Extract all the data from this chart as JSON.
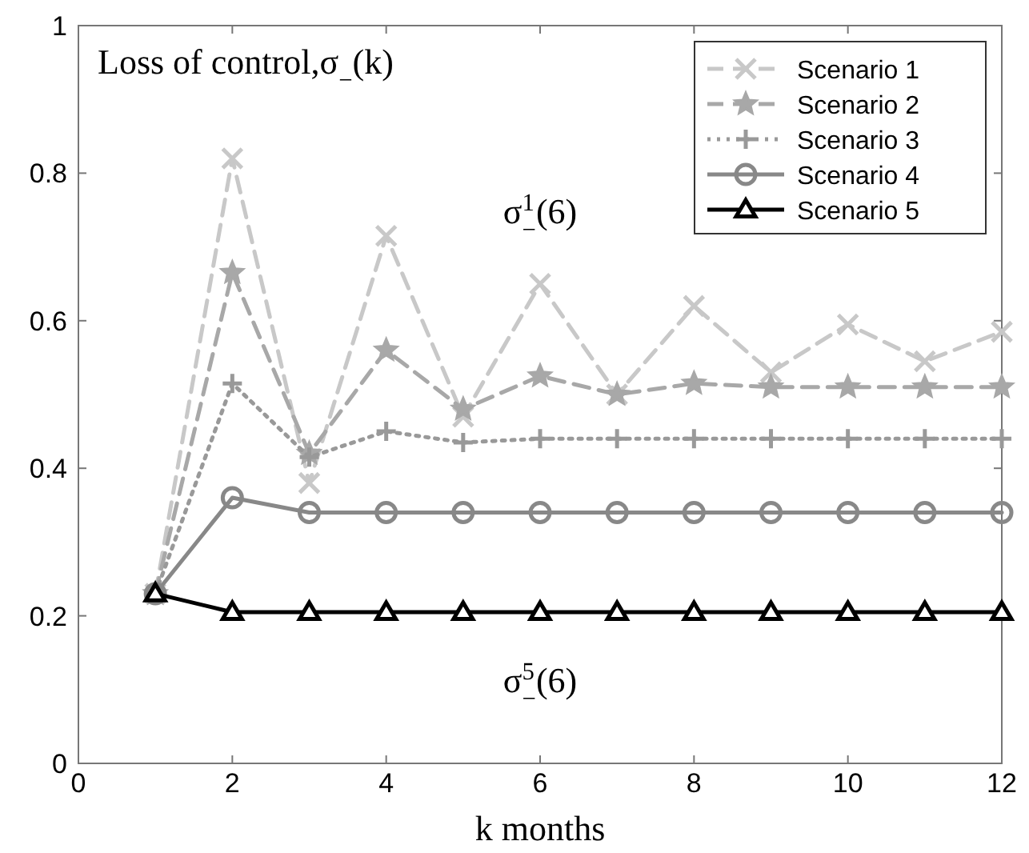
{
  "chart_data": {
    "type": "line",
    "title": "Loss of control,σ$_{−}$(k)",
    "xlabel": "k months",
    "x": [
      1,
      2,
      3,
      4,
      5,
      6,
      7,
      8,
      9,
      10,
      11,
      12
    ],
    "xlim": [
      0,
      12
    ],
    "xticks": [
      0,
      2,
      4,
      6,
      8,
      10,
      12
    ],
    "ylim": [
      0,
      1
    ],
    "yticks": [
      0,
      0.2,
      0.4,
      0.6,
      0.8,
      1
    ],
    "grid": false,
    "legend": "top right",
    "series": [
      {
        "name": "Scenario 1",
        "color": "#c8c8c8",
        "marker": "cross",
        "line_style": "dashed",
        "values": [
          0.23,
          0.82,
          0.38,
          0.715,
          0.47,
          0.65,
          0.5,
          0.62,
          0.53,
          0.595,
          0.545,
          0.585
        ]
      },
      {
        "name": "Scenario 2",
        "color": "#a8a8a8",
        "marker": "star",
        "line_style": "dashed",
        "values": [
          0.23,
          0.665,
          0.42,
          0.56,
          0.48,
          0.525,
          0.5,
          0.515,
          0.51,
          0.51,
          0.51,
          0.51
        ]
      },
      {
        "name": "Scenario 3",
        "color": "#999999",
        "marker": "plus",
        "line_style": "dotted",
        "values": [
          0.23,
          0.515,
          0.415,
          0.45,
          0.435,
          0.44,
          0.44,
          0.44,
          0.44,
          0.44,
          0.44,
          0.44
        ]
      },
      {
        "name": "Scenario 4",
        "color": "#888888",
        "marker": "circle",
        "line_style": "solid",
        "values": [
          0.23,
          0.36,
          0.34,
          0.34,
          0.34,
          0.34,
          0.34,
          0.34,
          0.34,
          0.34,
          0.34,
          0.34
        ]
      },
      {
        "name": "Scenario 5",
        "color": "#000000",
        "marker": "triangle",
        "line_style": "solid",
        "values": [
          0.23,
          0.205,
          0.205,
          0.205,
          0.205,
          0.205,
          0.205,
          0.205,
          0.205,
          0.205,
          0.205,
          0.205
        ]
      }
    ],
    "annotations": [
      {
        "text": "σ$^{1}$$_{−}$(6)",
        "x": 6,
        "y": 0.65
      },
      {
        "text": "σ$^{5}$$_{−}$(6)",
        "x": 6,
        "y": 0.205
      }
    ]
  }
}
